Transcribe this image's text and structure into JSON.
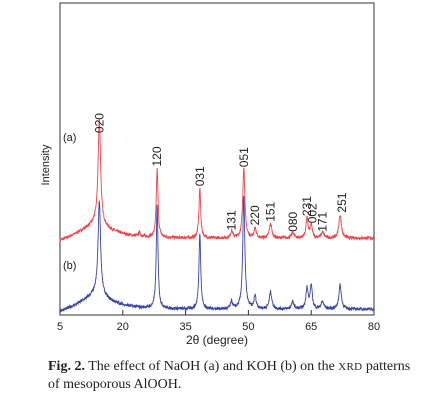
{
  "chart_data": {
    "type": "line",
    "xlabel": "2θ (degree)",
    "ylabel": "Intensity",
    "xlim": [
      5,
      80
    ],
    "xticks": [
      5,
      20,
      35,
      50,
      65,
      80
    ],
    "xtick_labels": [
      "5",
      "20",
      "35",
      "50",
      "65",
      "80"
    ],
    "grid": false,
    "series": [
      {
        "name": "(a)",
        "color": "#e8474e",
        "offset": 1.0,
        "peaks": [
          {
            "x": 14.4,
            "h": 1.45,
            "w": 0.35
          },
          {
            "x": 24.0,
            "h": 0.05,
            "w": 0.25
          },
          {
            "x": 28.2,
            "h": 0.96,
            "w": 0.25
          },
          {
            "x": 38.4,
            "h": 0.7,
            "w": 0.25
          },
          {
            "x": 46.0,
            "h": 0.1,
            "w": 0.3
          },
          {
            "x": 48.9,
            "h": 1.0,
            "w": 0.3
          },
          {
            "x": 51.6,
            "h": 0.14,
            "w": 0.3
          },
          {
            "x": 55.3,
            "h": 0.2,
            "w": 0.35
          },
          {
            "x": 60.6,
            "h": 0.08,
            "w": 0.35
          },
          {
            "x": 64.0,
            "h": 0.28,
            "w": 0.3
          },
          {
            "x": 65.0,
            "h": 0.18,
            "w": 0.3
          },
          {
            "x": 67.7,
            "h": 0.08,
            "w": 0.4
          },
          {
            "x": 71.9,
            "h": 0.33,
            "w": 0.35
          }
        ]
      },
      {
        "name": "(b)",
        "color": "#3a46a0",
        "offset": 0.0,
        "peaks": [
          {
            "x": 14.4,
            "h": 1.3,
            "w": 0.35
          },
          {
            "x": 28.2,
            "h": 1.45,
            "w": 0.25
          },
          {
            "x": 38.4,
            "h": 1.08,
            "w": 0.25
          },
          {
            "x": 46.0,
            "h": 0.1,
            "w": 0.3
          },
          {
            "x": 48.9,
            "h": 1.58,
            "w": 0.3
          },
          {
            "x": 51.6,
            "h": 0.18,
            "w": 0.3
          },
          {
            "x": 55.3,
            "h": 0.24,
            "w": 0.35
          },
          {
            "x": 60.6,
            "h": 0.1,
            "w": 0.35
          },
          {
            "x": 64.0,
            "h": 0.3,
            "w": 0.3
          },
          {
            "x": 65.0,
            "h": 0.33,
            "w": 0.3
          },
          {
            "x": 67.7,
            "h": 0.1,
            "w": 0.4
          },
          {
            "x": 71.9,
            "h": 0.34,
            "w": 0.35
          }
        ]
      }
    ],
    "peak_labels": [
      {
        "text": "020",
        "x": 14.4,
        "y": 2.52
      },
      {
        "text": "120",
        "x": 28.2,
        "y": 2.05
      },
      {
        "text": "031",
        "x": 38.4,
        "y": 1.77
      },
      {
        "text": "051",
        "x": 48.9,
        "y": 2.04
      },
      {
        "text": "131",
        "x": 46.0,
        "y": 1.15
      },
      {
        "text": "220",
        "x": 51.6,
        "y": 1.22
      },
      {
        "text": "151",
        "x": 55.3,
        "y": 1.27
      },
      {
        "text": "080",
        "x": 60.6,
        "y": 1.13
      },
      {
        "text": "231",
        "x": 64.0,
        "y": 1.35
      },
      {
        "text": "002",
        "x": 65.3,
        "y": 1.25
      },
      {
        "text": "171",
        "x": 67.7,
        "y": 1.13
      },
      {
        "text": "251",
        "x": 72.3,
        "y": 1.4
      }
    ]
  },
  "caption": {
    "label": "Fig. 2.",
    "text_before": " The effect of NaOH (a) and KOH (b) on the ",
    "xrd": "XRD",
    "text_after": " patterns of mesoporous AlOOH."
  }
}
